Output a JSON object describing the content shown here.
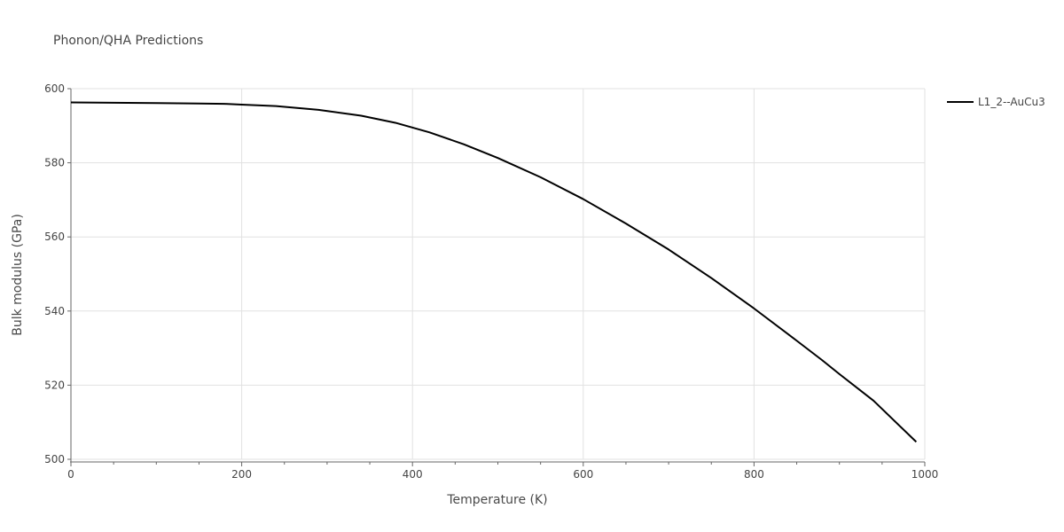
{
  "chart_data": {
    "type": "line",
    "title": "Phonon/QHA Predictions",
    "xlabel": "Temperature (K)",
    "ylabel": "Bulk modulus (GPa)",
    "xlim": [
      0,
      1000
    ],
    "ylim": [
      500,
      600
    ],
    "x_ticks": [
      0,
      200,
      400,
      600,
      800,
      1000
    ],
    "y_ticks": [
      500,
      520,
      540,
      560,
      580,
      600
    ],
    "x_tick_labels": [
      "0",
      "200",
      "400",
      "600",
      "800",
      "1000"
    ],
    "y_tick_labels": [
      "500",
      "520",
      "540",
      "560",
      "580",
      "600"
    ],
    "x_minor_ticks": [
      50,
      100,
      150,
      250,
      300,
      350,
      450,
      500,
      550,
      650,
      700,
      750,
      850,
      900,
      950
    ],
    "grid": true,
    "legend_position": "top-right",
    "series": [
      {
        "name": "L1_2--AuCu3",
        "color": "#000000",
        "points": [
          [
            0,
            596.3
          ],
          [
            50,
            596.2
          ],
          [
            100,
            596.1
          ],
          [
            150,
            596.0
          ],
          [
            180,
            595.9
          ],
          [
            200,
            595.7
          ],
          [
            240,
            595.3
          ],
          [
            290,
            594.3
          ],
          [
            340,
            592.7
          ],
          [
            380,
            590.8
          ],
          [
            420,
            588.2
          ],
          [
            460,
            585.0
          ],
          [
            500,
            581.3
          ],
          [
            550,
            576.1
          ],
          [
            600,
            570.2
          ],
          [
            650,
            563.6
          ],
          [
            700,
            556.6
          ],
          [
            750,
            548.9
          ],
          [
            800,
            540.7
          ],
          [
            850,
            532.0
          ],
          [
            880,
            526.7
          ],
          [
            900,
            523.0
          ],
          [
            940,
            515.8
          ],
          [
            990,
            504.7
          ]
        ]
      }
    ]
  }
}
